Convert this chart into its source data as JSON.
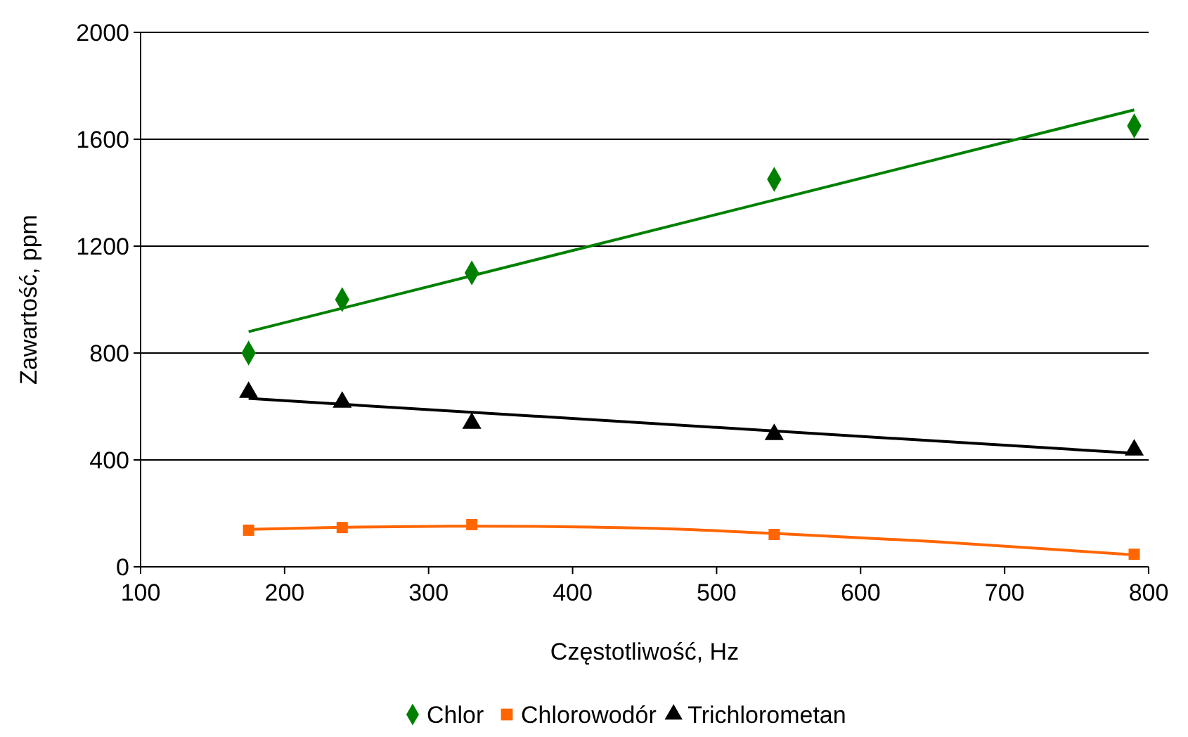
{
  "chart_data": {
    "type": "scatter",
    "xlabel": "Częstotliwość, Hz",
    "ylabel": "Zawartość, ppm",
    "xlim": [
      100,
      800
    ],
    "xticks": [
      100,
      200,
      300,
      400,
      500,
      600,
      700,
      800
    ],
    "ylim": [
      0,
      2000
    ],
    "yticks": [
      0,
      400,
      800,
      1200,
      1600,
      2000
    ],
    "grid": "y",
    "legend": "bottom",
    "series": [
      {
        "name": "Chlor",
        "color": "#008000",
        "marker": "diamond",
        "x": [
          175,
          240,
          330,
          540,
          790
        ],
        "values": [
          800,
          1000,
          1100,
          1450,
          1650
        ]
      },
      {
        "name": "Chlorowodór",
        "color": "#ff6600",
        "marker": "square",
        "x": [
          175,
          240,
          330,
          540,
          790
        ],
        "values": [
          137,
          147,
          158,
          121,
          47
        ]
      },
      {
        "name": "Trichlorometan",
        "color": "#000000",
        "marker": "triangle",
        "x": [
          175,
          240,
          330,
          540,
          790
        ],
        "values": [
          653,
          616,
          537,
          495,
          437
        ]
      },
      {
        "type": "line",
        "color": "#008000",
        "marker": "none",
        "x": [
          175,
          790
        ],
        "values": [
          880,
          1710
        ]
      },
      {
        "type": "line",
        "color": "#ff6600",
        "marker": "none",
        "x": [
          175,
          240,
          330,
          450,
          540,
          650,
          790
        ],
        "values": [
          140,
          148,
          152,
          145,
          125,
          95,
          45
        ]
      },
      {
        "type": "line",
        "color": "#000000",
        "marker": "none",
        "x": [
          175,
          790
        ],
        "values": [
          630,
          425
        ]
      }
    ]
  }
}
